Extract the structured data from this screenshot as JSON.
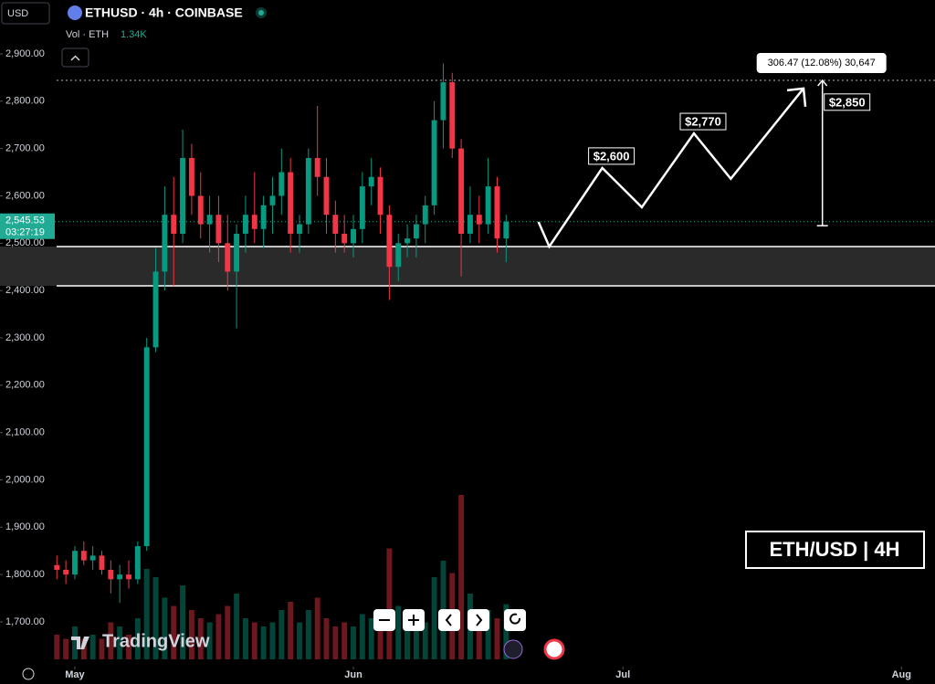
{
  "header": {
    "currency": "USD",
    "symbol": "ETHUSD · 4h · COINBASE",
    "volume_label": "Vol · ETH",
    "volume_value": "1.34K"
  },
  "watermark": "TradingView",
  "chart_data": {
    "type": "candlestick",
    "title": "ETH/USD | 4H",
    "xlim": [
      -8.33,
      95.73
    ],
    "ylim": [
      1605.4,
      3013.8
    ],
    "xticks": [
      {
        "value": 0,
        "label": "May"
      },
      {
        "value": 31,
        "label": "Jun"
      },
      {
        "value": 61,
        "label": "Jul"
      },
      {
        "value": 92,
        "label": "Aug"
      }
    ],
    "yticks": [
      {
        "value": 2900,
        "label": "2,900.00"
      },
      {
        "value": 2800,
        "label": "2,800.00"
      },
      {
        "value": 2700,
        "label": "2,700.00"
      },
      {
        "value": 2600,
        "label": "2,600.00"
      },
      {
        "value": 2500,
        "label": "2,500.00"
      },
      {
        "value": 2400,
        "label": "2,400.00"
      },
      {
        "value": 2300,
        "label": "2,300.00"
      },
      {
        "value": 2200,
        "label": "2,200.00"
      },
      {
        "value": 2100,
        "label": "2,100.00"
      },
      {
        "value": 2000,
        "label": "2,000.00"
      },
      {
        "value": 1900,
        "label": "1,900.00"
      },
      {
        "value": 1800,
        "label": "1,800.00"
      },
      {
        "value": 1700,
        "label": "1,700.00"
      }
    ],
    "up_color": "#089981",
    "down_color": "#f23645",
    "x": [
      -2,
      -1,
      0,
      1,
      2,
      3,
      4,
      5,
      6,
      7,
      8,
      9,
      10,
      11,
      12,
      13,
      14,
      15,
      16,
      17,
      18,
      19,
      20,
      21,
      22,
      23,
      24,
      25,
      26,
      27,
      28,
      29,
      30,
      31,
      32,
      33,
      34,
      35,
      36,
      37,
      38,
      39,
      40,
      41,
      42,
      43,
      44,
      45,
      46,
      47,
      48
    ],
    "ohlc": [
      [
        1820,
        1840,
        1790,
        1810
      ],
      [
        1810,
        1830,
        1780,
        1800
      ],
      [
        1800,
        1860,
        1790,
        1850
      ],
      [
        1850,
        1870,
        1820,
        1830
      ],
      [
        1830,
        1860,
        1810,
        1840
      ],
      [
        1840,
        1850,
        1800,
        1810
      ],
      [
        1810,
        1830,
        1760,
        1790
      ],
      [
        1790,
        1820,
        1740,
        1800
      ],
      [
        1800,
        1830,
        1770,
        1790
      ],
      [
        1790,
        1870,
        1780,
        1860
      ],
      [
        1860,
        2300,
        1850,
        2280
      ],
      [
        2280,
        2490,
        2270,
        2440
      ],
      [
        2440,
        2620,
        2400,
        2560
      ],
      [
        2560,
        2640,
        2410,
        2520
      ],
      [
        2520,
        2740,
        2500,
        2680
      ],
      [
        2680,
        2710,
        2560,
        2600
      ],
      [
        2600,
        2650,
        2510,
        2540
      ],
      [
        2540,
        2600,
        2480,
        2560
      ],
      [
        2560,
        2600,
        2460,
        2500
      ],
      [
        2500,
        2560,
        2400,
        2440
      ],
      [
        2440,
        2540,
        2320,
        2520
      ],
      [
        2520,
        2600,
        2480,
        2560
      ],
      [
        2560,
        2650,
        2500,
        2530
      ],
      [
        2530,
        2600,
        2490,
        2580
      ],
      [
        2580,
        2640,
        2520,
        2600
      ],
      [
        2600,
        2700,
        2560,
        2650
      ],
      [
        2650,
        2680,
        2480,
        2520
      ],
      [
        2520,
        2560,
        2480,
        2540
      ],
      [
        2540,
        2700,
        2520,
        2680
      ],
      [
        2680,
        2790,
        2600,
        2640
      ],
      [
        2640,
        2680,
        2520,
        2560
      ],
      [
        2560,
        2590,
        2480,
        2520
      ],
      [
        2520,
        2560,
        2480,
        2500
      ],
      [
        2500,
        2560,
        2470,
        2530
      ],
      [
        2530,
        2650,
        2500,
        2620
      ],
      [
        2620,
        2680,
        2580,
        2640
      ],
      [
        2640,
        2660,
        2520,
        2560
      ],
      [
        2560,
        2580,
        2380,
        2450
      ],
      [
        2450,
        2520,
        2420,
        2500
      ],
      [
        2500,
        2540,
        2470,
        2510
      ],
      [
        2510,
        2560,
        2470,
        2540
      ],
      [
        2540,
        2600,
        2500,
        2580
      ],
      [
        2580,
        2800,
        2560,
        2760
      ],
      [
        2760,
        2880,
        2700,
        2840
      ],
      [
        2840,
        2860,
        2680,
        2700
      ],
      [
        2700,
        2720,
        2430,
        2520
      ],
      [
        2520,
        2620,
        2500,
        2560
      ],
      [
        2560,
        2600,
        2500,
        2540
      ],
      [
        2540,
        2680,
        2520,
        2620
      ],
      [
        2620,
        2640,
        2480,
        2510
      ],
      [
        2510,
        2560,
        2460,
        2545.53
      ]
    ],
    "volume": [
      0.6,
      0.5,
      0.8,
      0.5,
      0.6,
      0.5,
      0.9,
      0.8,
      0.6,
      1.0,
      2.2,
      2.0,
      1.5,
      1.3,
      1.8,
      1.2,
      1.0,
      0.9,
      1.1,
      1.3,
      1.6,
      1.0,
      0.9,
      0.8,
      0.9,
      1.2,
      1.4,
      0.9,
      1.2,
      1.5,
      1.0,
      0.8,
      0.9,
      0.8,
      1.1,
      1.0,
      1.0,
      2.7,
      1.3,
      1.0,
      0.9,
      0.9,
      2.0,
      2.4,
      2.1,
      4.0,
      1.6,
      1.1,
      1.2,
      1.0,
      1.34
    ],
    "last_price": {
      "value": 2545.53,
      "label": "2,545.53",
      "countdown": "03:27:19"
    },
    "zone": [
      2493,
      2410
    ],
    "target_line": 2844,
    "projection": {
      "x": [
        51.6,
        52.8,
        58.7,
        63.1,
        68.9,
        73,
        81.1
      ],
      "y": [
        2545,
        2493,
        2659,
        2576,
        2732,
        2636,
        2827
      ],
      "labels": [
        {
          "text": "$2,600",
          "x": 58.7,
          "y": 2659
        },
        {
          "text": "$2,770",
          "x": 68.9,
          "y": 2732
        },
        {
          "text": "$2,850",
          "x": 83.2,
          "y": 2827
        }
      ]
    },
    "measure": {
      "x": 83.2,
      "from": 2537,
      "to": 2844,
      "label": "306.47 (12.08%) 30,647"
    }
  }
}
